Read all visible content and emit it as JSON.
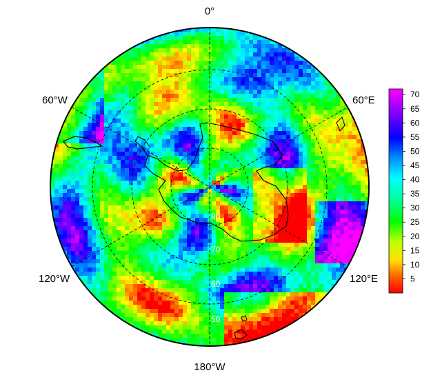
{
  "map": {
    "projection": "south-polar stereographic",
    "lon_labels": {
      "top": "0°",
      "upper_left": "60°W",
      "upper_right": "60°E",
      "lower_left": "120°W",
      "lower_right": "120°E",
      "bottom": "180°W"
    },
    "lat_labels": [
      "80",
      "70",
      "60",
      "50"
    ],
    "graticule": "dashed",
    "continent_outline_color": "#000000"
  },
  "colorbar": {
    "ticks": [
      "70",
      "65",
      "60",
      "55",
      "50",
      "45",
      "40",
      "35",
      "30",
      "25",
      "20",
      "15",
      "10",
      "5"
    ],
    "range": [
      0,
      72
    ],
    "colors": [
      "#ff0000",
      "#ff8000",
      "#ffff00",
      "#80ff00",
      "#00ff00",
      "#00ff80",
      "#00ffff",
      "#0080ff",
      "#0000ff",
      "#8000ff",
      "#ff00ff"
    ]
  }
}
